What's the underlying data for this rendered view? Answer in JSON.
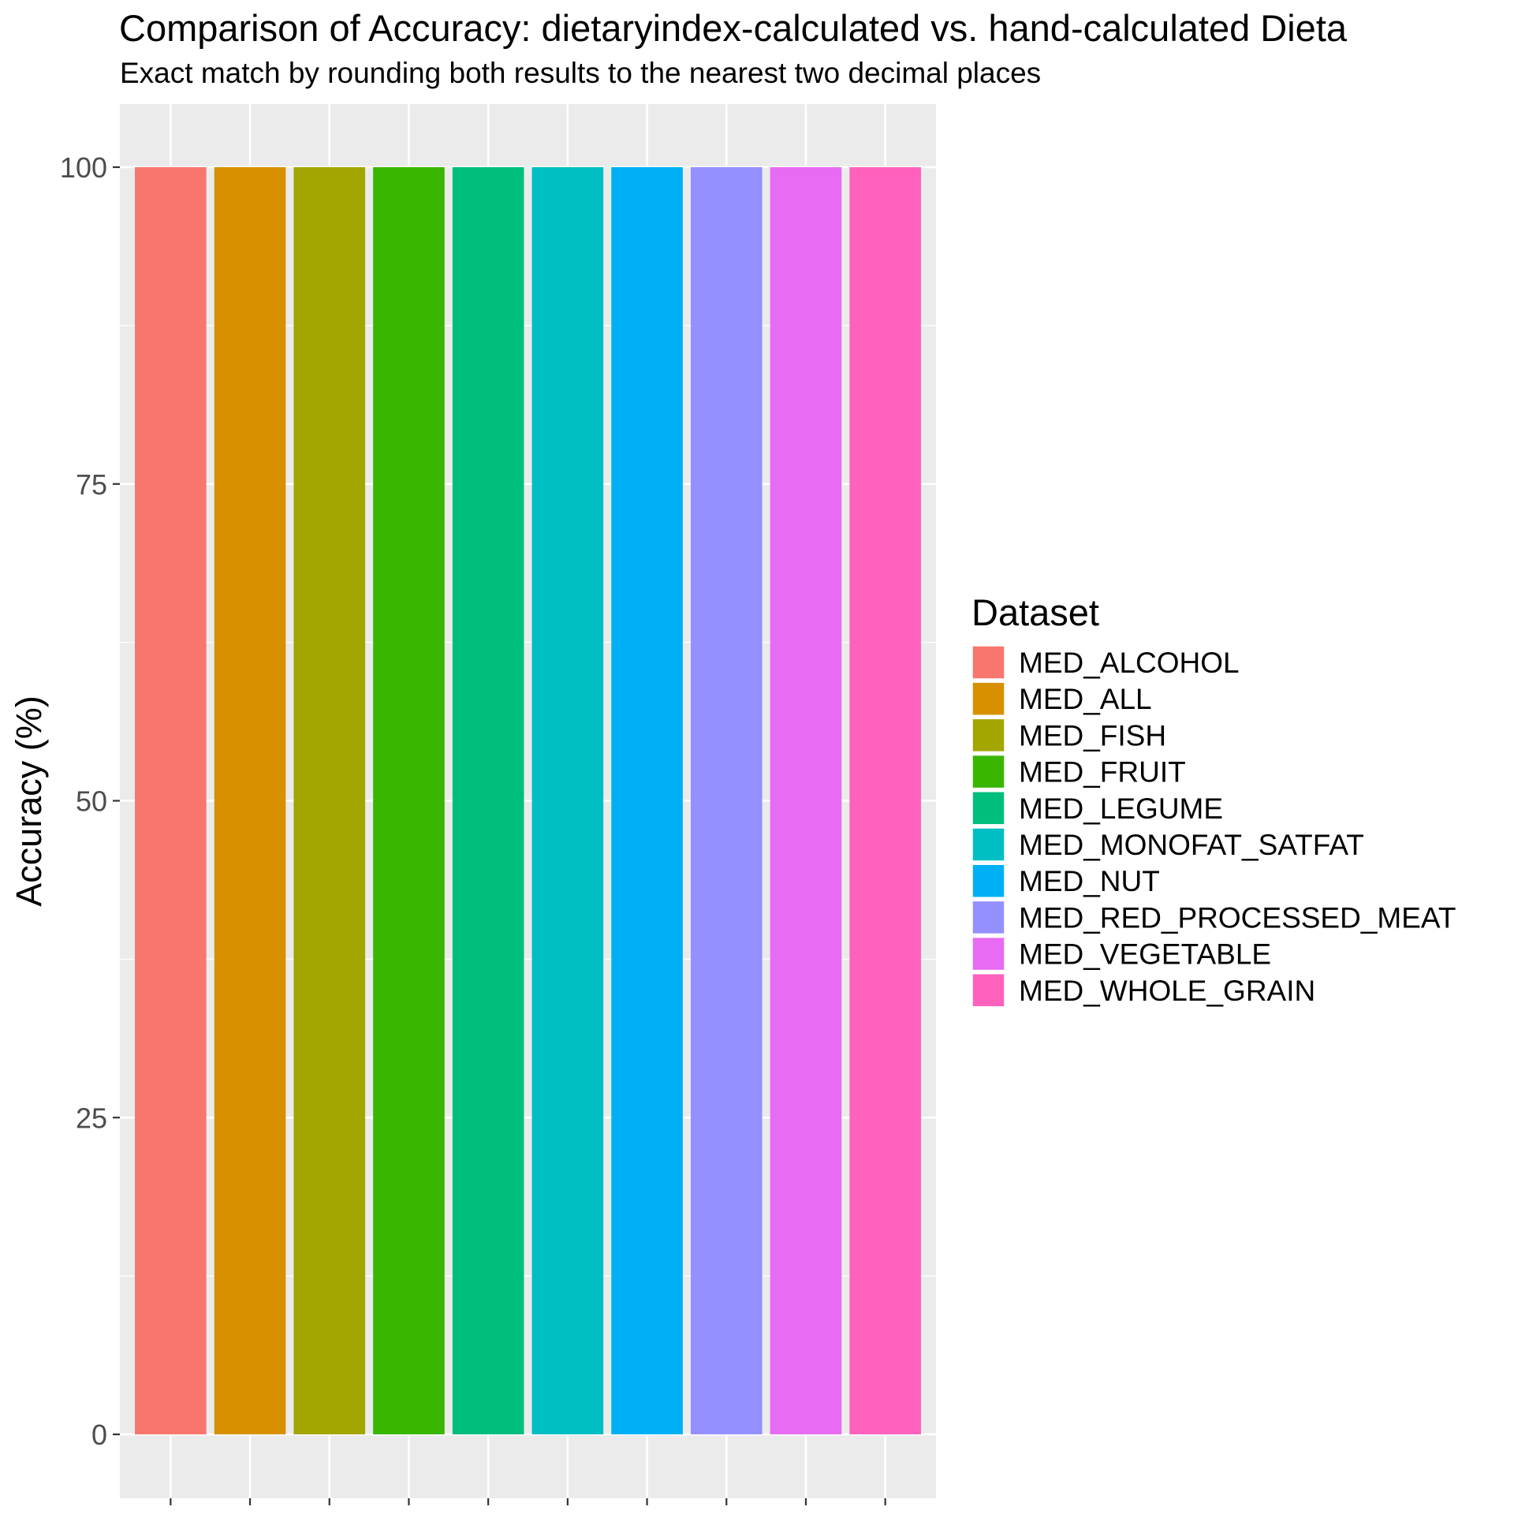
{
  "chart_data": {
    "type": "bar",
    "title": "Comparison of Accuracy: dietaryindex-calculated vs. hand-calculated Dieta",
    "subtitle": "Exact match by rounding both results to the nearest two decimal places",
    "xlabel": "",
    "ylabel": "Accuracy (%)",
    "ylim": [
      -5,
      105
    ],
    "yticks": [
      0,
      25,
      50,
      75,
      100
    ],
    "grid": true,
    "legend_position": "right",
    "legend_title": "Dataset",
    "categories": [
      "MED_ALCOHOL",
      "MED_ALL",
      "MED_FISH",
      "MED_FRUIT",
      "MED_LEGUME",
      "MED_MONOFAT_SATFAT",
      "MED_NUT",
      "MED_RED_PROCESSED_MEAT",
      "MED_VEGETABLE",
      "MED_WHOLE_GRAIN"
    ],
    "values": [
      100,
      100,
      100,
      100,
      100,
      100,
      100,
      100,
      100,
      100
    ],
    "colors": [
      "#F8766D",
      "#D89000",
      "#A3A500",
      "#39B600",
      "#00BF7D",
      "#00BFC4",
      "#00B0F6",
      "#9590FF",
      "#E76BF3",
      "#FF62BC"
    ]
  }
}
